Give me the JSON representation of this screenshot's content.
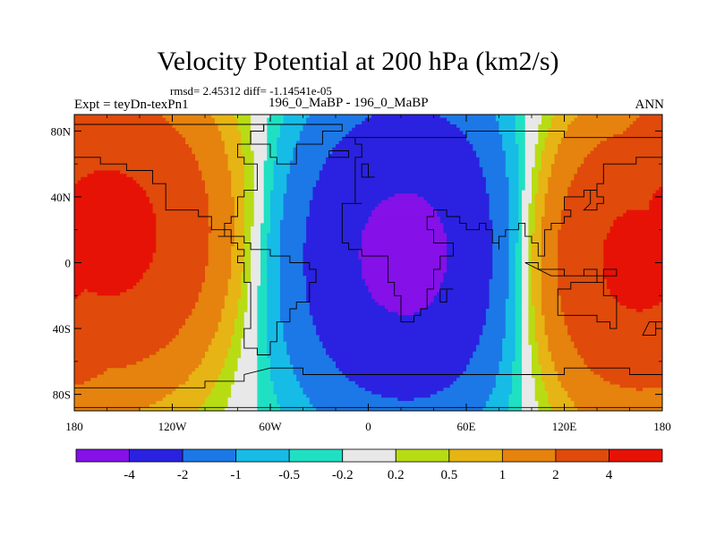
{
  "title": "Velocity Potential at 200 hPa (km2/s)",
  "stats": {
    "rmsd_label": "rmsd=",
    "rmsd": "2.45312",
    "diff_label": "diff=",
    "diff": "-1.14541e-05"
  },
  "left_string": "Expt = teyDn-texPn1",
  "center_string": "196_0_MaBP - 196_0_MaBP",
  "right_string": "ANN",
  "colors": {
    "bins": [
      "#8510e8",
      "#2a22e0",
      "#1c78e6",
      "#16bce6",
      "#20e0c4",
      "#e8e8e8",
      "#b8dc14",
      "#e6b414",
      "#e6820e",
      "#e04a0a",
      "#e61206"
    ],
    "coastline": "#000000"
  },
  "chart_data": {
    "type": "heatmap",
    "projection": "cylindrical-equidistant",
    "title": "Velocity Potential at 200 hPa (km2/s)",
    "units": "km2/s",
    "field": "velocity_potential_200hPa",
    "season": "ANN",
    "x_ticks": [
      "180",
      "120W",
      "60W",
      "0",
      "60E",
      "120E",
      "180"
    ],
    "x_tick_values": [
      -180,
      -120,
      -60,
      0,
      60,
      120,
      180
    ],
    "y_ticks": [
      "80N",
      "40N",
      "0",
      "40S",
      "80S"
    ],
    "y_tick_values": [
      80,
      40,
      0,
      -40,
      -80
    ],
    "xlim": [
      -180,
      180
    ],
    "ylim": [
      -90,
      90
    ],
    "contour_levels": [
      "-4",
      "-2",
      "-1",
      "-0.5",
      "-0.2",
      "0.2",
      "0.5",
      "1",
      "2",
      "4"
    ],
    "level_values": [
      -4,
      -2,
      -1,
      -0.5,
      -0.2,
      0.2,
      0.5,
      1,
      2,
      4
    ],
    "features": [
      {
        "name": "negative center",
        "lon": 30,
        "lat": 5,
        "value": -4.5
      },
      {
        "name": "positive center west",
        "lon": -165,
        "lat": 20,
        "value": 4.2
      },
      {
        "name": "positive center east",
        "lon": 160,
        "lat": 5,
        "value": 4.2
      }
    ]
  }
}
